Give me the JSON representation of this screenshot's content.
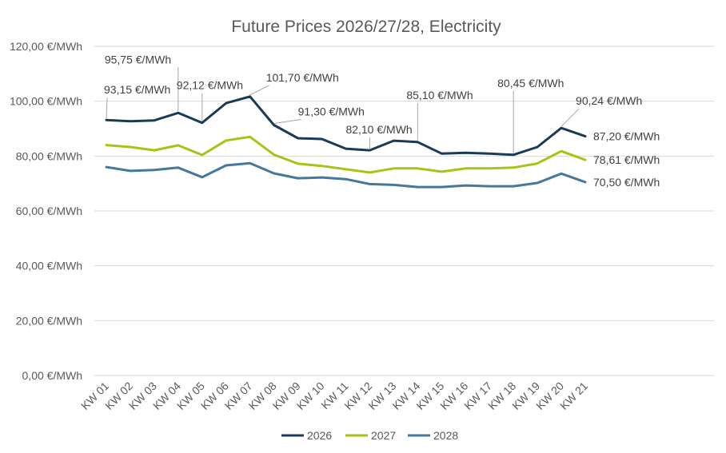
{
  "chart_data": {
    "type": "line",
    "title": "Future Prices 2026/27/28, Electricity",
    "xlabel": "",
    "ylabel": "",
    "ylim": [
      0,
      120
    ],
    "y_ticks": [
      "0,00 €/MWh",
      "20,00 €/MWh",
      "40,00 €/MWh",
      "60,00 €/MWh",
      "80,00 €/MWh",
      "100,00 €/MWh",
      "120,00 €/MWh"
    ],
    "categories": [
      "KW 01",
      "KW 02",
      "KW 03",
      "KW 04",
      "KW 05",
      "KW 06",
      "KW 07",
      "KW 08",
      "KW 09",
      "KW 10",
      "KW 11",
      "KW 12",
      "KW 13",
      "KW 14",
      "KW 15",
      "KW 16",
      "KW 17",
      "KW 18",
      "KW 19",
      "KW 20",
      "KW 21"
    ],
    "grid": true,
    "legend_position": "bottom",
    "series": [
      {
        "name": "2026",
        "color": "#1b3a57",
        "values": [
          93.15,
          92.7,
          93.0,
          95.75,
          92.12,
          99.3,
          101.7,
          91.3,
          86.5,
          86.2,
          82.7,
          82.1,
          85.6,
          85.1,
          80.9,
          81.2,
          80.9,
          80.45,
          83.3,
          90.24,
          87.2
        ]
      },
      {
        "name": "2027",
        "color": "#a4c416",
        "values": [
          84.0,
          83.3,
          82.1,
          83.9,
          80.4,
          85.7,
          87.0,
          80.5,
          77.2,
          76.4,
          75.2,
          74.0,
          75.5,
          75.5,
          74.3,
          75.5,
          75.5,
          75.8,
          77.3,
          81.8,
          78.61
        ]
      },
      {
        "name": "2028",
        "color": "#44789e",
        "values": [
          76.0,
          74.6,
          74.9,
          75.8,
          72.3,
          76.6,
          77.4,
          73.7,
          71.9,
          72.2,
          71.6,
          69.8,
          69.5,
          68.7,
          68.7,
          69.3,
          69.0,
          69.0,
          70.2,
          73.6,
          70.5
        ]
      }
    ],
    "data_labels": [
      {
        "series": 0,
        "index": 0,
        "text": "93,15 €/MWh"
      },
      {
        "series": 0,
        "index": 3,
        "text": "95,75 €/MWh"
      },
      {
        "series": 0,
        "index": 4,
        "text": "92,12 €/MWh"
      },
      {
        "series": 0,
        "index": 6,
        "text": "101,70 €/MWh"
      },
      {
        "series": 0,
        "index": 7,
        "text": "91,30 €/MWh"
      },
      {
        "series": 0,
        "index": 11,
        "text": "82,10 €/MWh"
      },
      {
        "series": 0,
        "index": 13,
        "text": "85,10 €/MWh"
      },
      {
        "series": 0,
        "index": 17,
        "text": "80,45 €/MWh"
      },
      {
        "series": 0,
        "index": 19,
        "text": "90,24 €/MWh"
      },
      {
        "series": 0,
        "index": 20,
        "text": "87,20 €/MWh"
      },
      {
        "series": 1,
        "index": 20,
        "text": "78,61 €/MWh"
      },
      {
        "series": 2,
        "index": 20,
        "text": "70,50 €/MWh"
      }
    ]
  }
}
